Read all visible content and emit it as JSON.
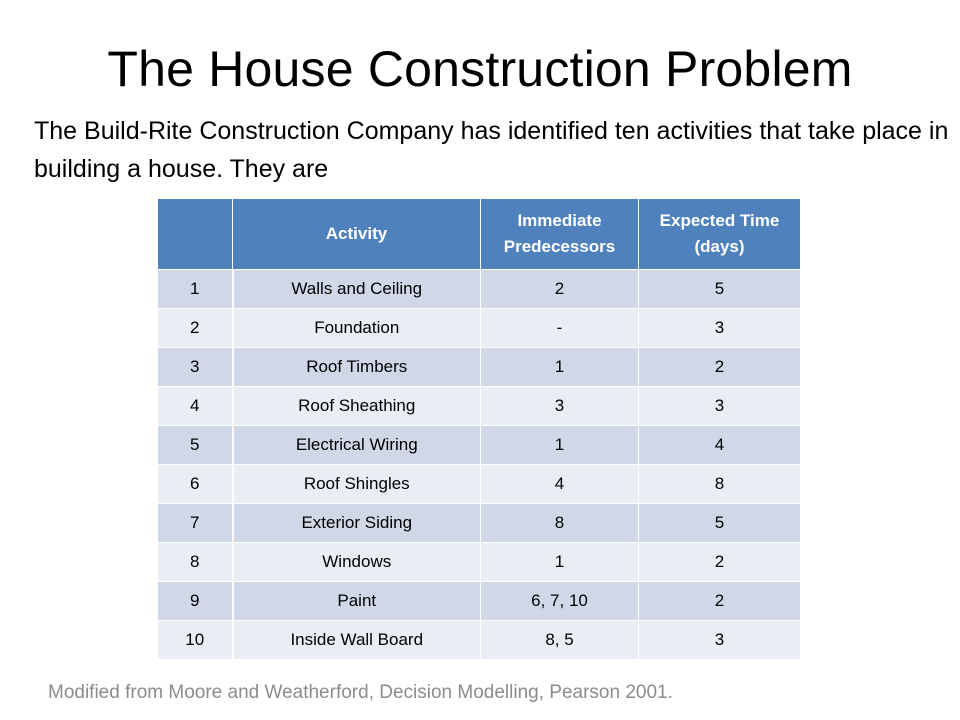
{
  "slide": {
    "title": "The House Construction Problem",
    "intro": "The Build-Rite Construction Company has identified ten activities that take place in building a house. They are",
    "credit": "Modified from Moore and Weatherford, Decision Modelling, Pearson 2001.",
    "colors": {
      "header_bg": "#4f81bd",
      "row_dark": "#d0d8e8",
      "row_light": "#e9edf4",
      "credit_text": "#8c8c8c"
    }
  },
  "table": {
    "headers": {
      "number": "",
      "activity": "Activity",
      "predecessors": "Immediate Predecessors",
      "time": "Expected Time (days)"
    },
    "rows": [
      [
        "1",
        "Walls and Ceiling",
        "2",
        "5"
      ],
      [
        "2",
        "Foundation",
        "-",
        "3"
      ],
      [
        "3",
        "Roof Timbers",
        "1",
        "2"
      ],
      [
        "4",
        "Roof Sheathing",
        "3",
        "3"
      ],
      [
        "5",
        "Electrical Wiring",
        "1",
        "4"
      ],
      [
        "6",
        "Roof Shingles",
        "4",
        "8"
      ],
      [
        "7",
        "Exterior Siding",
        "8",
        "5"
      ],
      [
        "8",
        "Windows",
        "1",
        "2"
      ],
      [
        "9",
        "Paint",
        "6, 7, 10",
        "2"
      ],
      [
        "10",
        "Inside Wall Board",
        "8, 5",
        "3"
      ]
    ]
  }
}
